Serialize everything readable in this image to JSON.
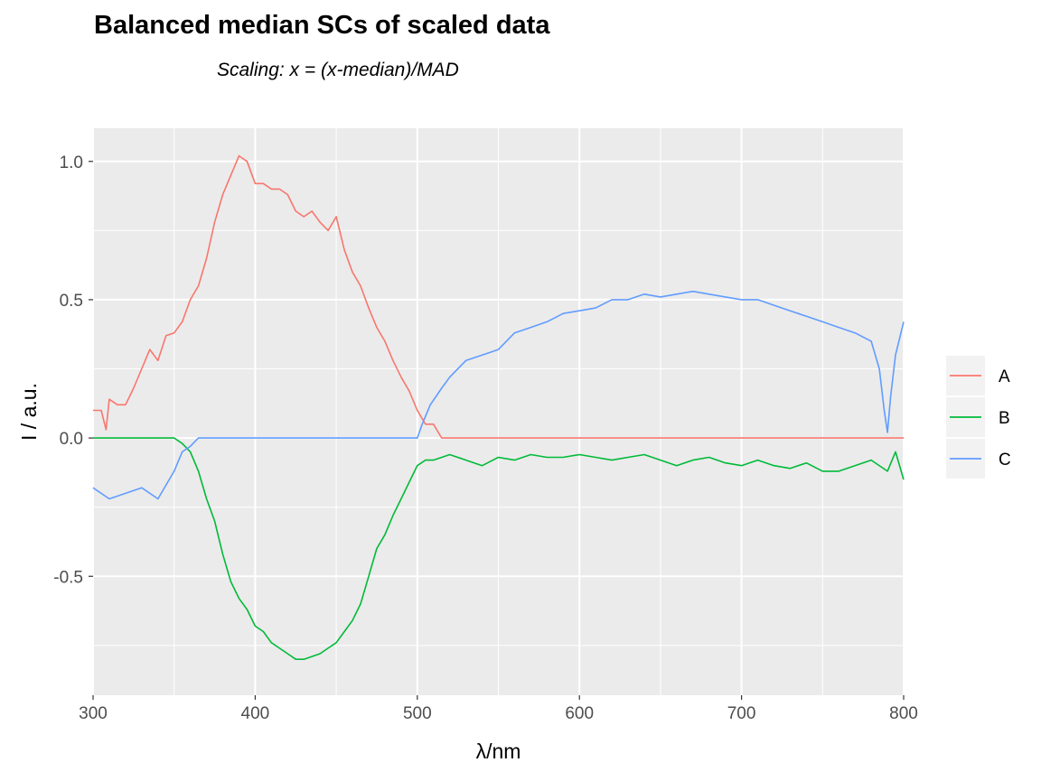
{
  "chart_data": {
    "type": "line",
    "title": "Balanced median SCs of scaled data",
    "subtitle": "Scaling: x = (x-median)/MAD",
    "xlabel": "λ/nm",
    "ylabel": "I / a.u.",
    "xlim": [
      300,
      800
    ],
    "ylim": [
      -0.93,
      1.12
    ],
    "x_ticks": [
      300,
      400,
      500,
      600,
      700,
      800
    ],
    "y_ticks": [
      -0.5,
      0.0,
      0.5,
      1.0
    ],
    "y_tick_labels": [
      "-0.5",
      "0.0",
      "0.5",
      "1.0"
    ],
    "grid": true,
    "legend_position": "right",
    "series": [
      {
        "name": "A",
        "color": "#F8766D",
        "points": [
          [
            300,
            0.1
          ],
          [
            305,
            0.1
          ],
          [
            308,
            0.03
          ],
          [
            310,
            0.14
          ],
          [
            315,
            0.12
          ],
          [
            320,
            0.12
          ],
          [
            325,
            0.18
          ],
          [
            330,
            0.25
          ],
          [
            335,
            0.32
          ],
          [
            340,
            0.28
          ],
          [
            345,
            0.37
          ],
          [
            350,
            0.38
          ],
          [
            355,
            0.42
          ],
          [
            360,
            0.5
          ],
          [
            365,
            0.55
          ],
          [
            370,
            0.65
          ],
          [
            375,
            0.78
          ],
          [
            380,
            0.88
          ],
          [
            385,
            0.95
          ],
          [
            390,
            1.02
          ],
          [
            395,
            1.0
          ],
          [
            400,
            0.92
          ],
          [
            405,
            0.92
          ],
          [
            410,
            0.9
          ],
          [
            415,
            0.9
          ],
          [
            420,
            0.88
          ],
          [
            425,
            0.82
          ],
          [
            430,
            0.8
          ],
          [
            435,
            0.82
          ],
          [
            440,
            0.78
          ],
          [
            445,
            0.75
          ],
          [
            450,
            0.8
          ],
          [
            455,
            0.68
          ],
          [
            460,
            0.6
          ],
          [
            465,
            0.55
          ],
          [
            470,
            0.47
          ],
          [
            475,
            0.4
          ],
          [
            480,
            0.35
          ],
          [
            485,
            0.28
          ],
          [
            490,
            0.22
          ],
          [
            495,
            0.17
          ],
          [
            500,
            0.1
          ],
          [
            505,
            0.05
          ],
          [
            510,
            0.05
          ],
          [
            515,
            0.0
          ],
          [
            550,
            0.0
          ],
          [
            600,
            0.0
          ],
          [
            650,
            0.0
          ],
          [
            700,
            0.0
          ],
          [
            750,
            0.0
          ],
          [
            800,
            0.0
          ]
        ]
      },
      {
        "name": "B",
        "color": "#00BA38",
        "points": [
          [
            300,
            0.0
          ],
          [
            340,
            0.0
          ],
          [
            350,
            0.0
          ],
          [
            355,
            -0.02
          ],
          [
            360,
            -0.05
          ],
          [
            365,
            -0.12
          ],
          [
            370,
            -0.22
          ],
          [
            375,
            -0.3
          ],
          [
            380,
            -0.42
          ],
          [
            385,
            -0.52
          ],
          [
            390,
            -0.58
          ],
          [
            395,
            -0.62
          ],
          [
            400,
            -0.68
          ],
          [
            405,
            -0.7
          ],
          [
            410,
            -0.74
          ],
          [
            415,
            -0.76
          ],
          [
            420,
            -0.78
          ],
          [
            425,
            -0.8
          ],
          [
            430,
            -0.8
          ],
          [
            435,
            -0.79
          ],
          [
            440,
            -0.78
          ],
          [
            445,
            -0.76
          ],
          [
            450,
            -0.74
          ],
          [
            455,
            -0.7
          ],
          [
            460,
            -0.66
          ],
          [
            465,
            -0.6
          ],
          [
            470,
            -0.5
          ],
          [
            475,
            -0.4
          ],
          [
            480,
            -0.35
          ],
          [
            485,
            -0.28
          ],
          [
            490,
            -0.22
          ],
          [
            495,
            -0.16
          ],
          [
            500,
            -0.1
          ],
          [
            505,
            -0.08
          ],
          [
            510,
            -0.08
          ],
          [
            520,
            -0.06
          ],
          [
            530,
            -0.08
          ],
          [
            540,
            -0.1
          ],
          [
            550,
            -0.07
          ],
          [
            560,
            -0.08
          ],
          [
            570,
            -0.06
          ],
          [
            580,
            -0.07
          ],
          [
            590,
            -0.07
          ],
          [
            600,
            -0.06
          ],
          [
            610,
            -0.07
          ],
          [
            620,
            -0.08
          ],
          [
            630,
            -0.07
          ],
          [
            640,
            -0.06
          ],
          [
            650,
            -0.08
          ],
          [
            660,
            -0.1
          ],
          [
            670,
            -0.08
          ],
          [
            680,
            -0.07
          ],
          [
            690,
            -0.09
          ],
          [
            700,
            -0.1
          ],
          [
            710,
            -0.08
          ],
          [
            720,
            -0.1
          ],
          [
            730,
            -0.11
          ],
          [
            740,
            -0.09
          ],
          [
            750,
            -0.12
          ],
          [
            760,
            -0.12
          ],
          [
            770,
            -0.1
          ],
          [
            780,
            -0.08
          ],
          [
            790,
            -0.12
          ],
          [
            795,
            -0.05
          ],
          [
            800,
            -0.15
          ]
        ]
      },
      {
        "name": "C",
        "color": "#619CFF",
        "points": [
          [
            300,
            -0.18
          ],
          [
            310,
            -0.22
          ],
          [
            320,
            -0.2
          ],
          [
            330,
            -0.18
          ],
          [
            340,
            -0.22
          ],
          [
            350,
            -0.12
          ],
          [
            355,
            -0.05
          ],
          [
            360,
            -0.03
          ],
          [
            365,
            0.0
          ],
          [
            400,
            0.0
          ],
          [
            450,
            0.0
          ],
          [
            500,
            0.0
          ],
          [
            503,
            0.05
          ],
          [
            508,
            0.12
          ],
          [
            515,
            0.18
          ],
          [
            520,
            0.22
          ],
          [
            530,
            0.28
          ],
          [
            540,
            0.3
          ],
          [
            550,
            0.32
          ],
          [
            560,
            0.38
          ],
          [
            570,
            0.4
          ],
          [
            580,
            0.42
          ],
          [
            590,
            0.45
          ],
          [
            600,
            0.46
          ],
          [
            610,
            0.47
          ],
          [
            620,
            0.5
          ],
          [
            630,
            0.5
          ],
          [
            640,
            0.52
          ],
          [
            650,
            0.51
          ],
          [
            660,
            0.52
          ],
          [
            670,
            0.53
          ],
          [
            680,
            0.52
          ],
          [
            690,
            0.51
          ],
          [
            700,
            0.5
          ],
          [
            710,
            0.5
          ],
          [
            720,
            0.48
          ],
          [
            730,
            0.46
          ],
          [
            740,
            0.44
          ],
          [
            750,
            0.42
          ],
          [
            760,
            0.4
          ],
          [
            770,
            0.38
          ],
          [
            780,
            0.35
          ],
          [
            785,
            0.25
          ],
          [
            788,
            0.1
          ],
          [
            790,
            0.02
          ],
          [
            792,
            0.15
          ],
          [
            795,
            0.3
          ],
          [
            800,
            0.42
          ]
        ]
      }
    ]
  }
}
